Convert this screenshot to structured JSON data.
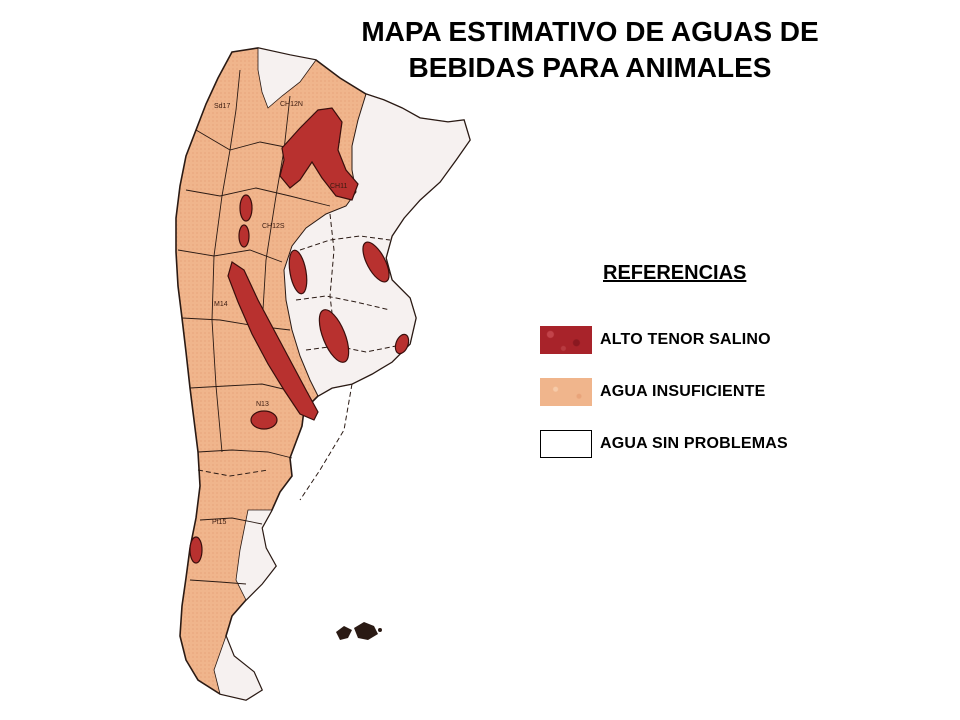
{
  "title": {
    "line1": "MAPA ESTIMATIVO DE AGUAS DE",
    "line2": "BEBIDAS PARA ANIMALES"
  },
  "legend": {
    "heading": "REFERENCIAS",
    "items": [
      {
        "label": "ALTO TENOR SALINO",
        "color": "#a8232a"
      },
      {
        "label": "AGUA INSUFICIENTE",
        "color": "#f0b58c"
      },
      {
        "label": "AGUA SIN PROBLEMAS",
        "color": "#ffffff"
      }
    ]
  },
  "map": {
    "region_labels": [
      "Sd17",
      "CH12N",
      "CH11",
      "CH12S",
      "M14",
      "N13",
      "Pt15"
    ],
    "colors": {
      "insuficiente": "#f0b58c",
      "salino": "#b8312f",
      "sin_problemas": "#f6f1f0",
      "border": "#2a1a14"
    }
  }
}
